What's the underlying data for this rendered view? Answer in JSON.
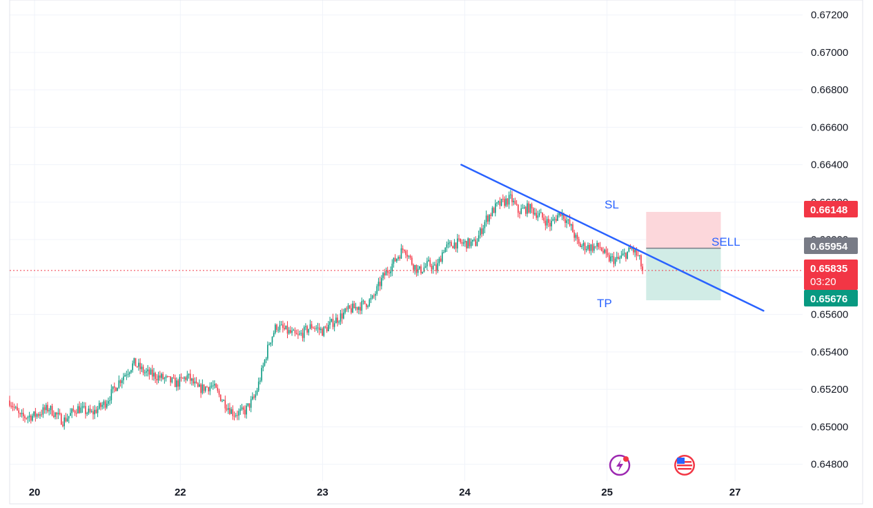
{
  "chart_data": {
    "type": "candlestick",
    "x_ticks": [
      {
        "label": "20",
        "t": 0.8
      },
      {
        "label": "22",
        "t": 2.85
      },
      {
        "label": "23",
        "t": 4.85
      },
      {
        "label": "24",
        "t": 6.85
      },
      {
        "label": "25",
        "t": 8.85
      },
      {
        "label": "27",
        "t": 10.65
      }
    ],
    "x_range": [
      0.45,
      11.6
    ],
    "y_ticks": [
      "0.67200",
      "0.67000",
      "0.66800",
      "0.66600",
      "0.66400",
      "0.66200",
      "0.66000",
      "0.65800",
      "0.65600",
      "0.65400",
      "0.65200",
      "0.65000",
      "0.64800"
    ],
    "y_range": [
      0.6471,
      0.6728
    ],
    "grid": true,
    "price_path": [
      [
        0.45,
        0.6514
      ],
      [
        0.6,
        0.6505
      ],
      [
        0.8,
        0.6506
      ],
      [
        1.0,
        0.651
      ],
      [
        1.2,
        0.6503
      ],
      [
        1.4,
        0.651
      ],
      [
        1.6,
        0.6507
      ],
      [
        1.8,
        0.6513
      ],
      [
        2.0,
        0.6525
      ],
      [
        2.2,
        0.6534
      ],
      [
        2.35,
        0.6529
      ],
      [
        2.6,
        0.6526
      ],
      [
        2.8,
        0.6523
      ],
      [
        2.95,
        0.6527
      ],
      [
        3.1,
        0.652
      ],
      [
        3.3,
        0.6522
      ],
      [
        3.45,
        0.6514
      ],
      [
        3.6,
        0.6507
      ],
      [
        3.75,
        0.6508
      ],
      [
        3.9,
        0.6516
      ],
      [
        4.0,
        0.653
      ],
      [
        4.1,
        0.6545
      ],
      [
        4.2,
        0.6554
      ],
      [
        4.35,
        0.6551
      ],
      [
        4.5,
        0.6548
      ],
      [
        4.7,
        0.6554
      ],
      [
        4.85,
        0.6551
      ],
      [
        5.0,
        0.6556
      ],
      [
        5.2,
        0.6562
      ],
      [
        5.4,
        0.6565
      ],
      [
        5.55,
        0.6568
      ],
      [
        5.7,
        0.658
      ],
      [
        5.85,
        0.6588
      ],
      [
        6.0,
        0.6596
      ],
      [
        6.1,
        0.6588
      ],
      [
        6.2,
        0.6583
      ],
      [
        6.35,
        0.6587
      ],
      [
        6.45,
        0.6584
      ],
      [
        6.55,
        0.6595
      ],
      [
        6.7,
        0.6598
      ],
      [
        6.85,
        0.6598
      ],
      [
        7.0,
        0.6598
      ],
      [
        7.15,
        0.6611
      ],
      [
        7.3,
        0.6618
      ],
      [
        7.5,
        0.6622
      ],
      [
        7.6,
        0.6615
      ],
      [
        7.75,
        0.6617
      ],
      [
        7.9,
        0.6613
      ],
      [
        8.05,
        0.6608
      ],
      [
        8.2,
        0.6615
      ],
      [
        8.35,
        0.6606
      ],
      [
        8.45,
        0.6597
      ],
      [
        8.6,
        0.6596
      ],
      [
        8.75,
        0.6596
      ],
      [
        8.85,
        0.659
      ],
      [
        9.0,
        0.6589
      ],
      [
        9.2,
        0.6595
      ],
      [
        9.3,
        0.659
      ],
      [
        9.35,
        0.65835
      ]
    ],
    "trendline": {
      "from": [
        6.8,
        0.664
      ],
      "to": [
        11.05,
        0.6562
      ]
    },
    "position": {
      "side": "SELL",
      "entry": 0.65954,
      "stop_loss": 0.66148,
      "take_profit": 0.65676,
      "x_start": 9.4,
      "x_end": 10.45
    },
    "annotations": {
      "sl": "SL",
      "sell": "SELL",
      "tp": "TP"
    },
    "price_tags": {
      "stop_loss": "0.66148",
      "entry": "0.65954",
      "current": "0.65835",
      "countdown": "03:20",
      "take_profit": "0.65676"
    },
    "current_price": 0.65835
  },
  "colors": {
    "grid": "#f0f3fa",
    "up": "#089981",
    "down": "#f23645",
    "trendline": "#2962ff",
    "sl_zone": "#fcd7db",
    "tp_zone": "#d1ece6",
    "entry_tag": "#787b86",
    "sl_tag": "#f23645",
    "tp_tag": "#089981",
    "current_line": "#f23645"
  },
  "icons": [
    "lightning-icon",
    "us-flag-icon"
  ]
}
